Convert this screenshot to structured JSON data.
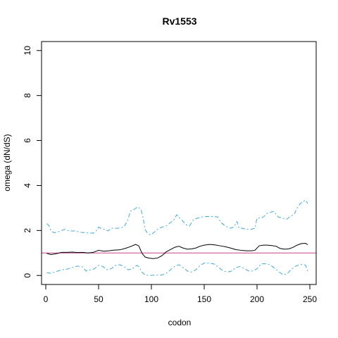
{
  "chart_data": {
    "type": "line",
    "title": "Rv1553",
    "xlabel": "codon",
    "ylabel": "omega (dN/dS)",
    "xlim": [
      -4,
      256
    ],
    "ylim": [
      -0.4,
      10.4
    ],
    "xticks": [
      0,
      50,
      100,
      150,
      200,
      250
    ],
    "yticks": [
      0,
      2,
      4,
      6,
      8,
      10
    ],
    "grid": false,
    "legend": "none",
    "reference_line": {
      "y": 1,
      "color": "#c4468a"
    },
    "series": [
      {
        "role": "estimate",
        "color": "#000000",
        "dash": "solid",
        "points": [
          [
            1,
            0.98
          ],
          [
            5,
            0.93
          ],
          [
            10,
            0.97
          ],
          [
            15,
            1.03
          ],
          [
            20,
            1.03
          ],
          [
            25,
            1.04
          ],
          [
            30,
            1.02
          ],
          [
            35,
            1.03
          ],
          [
            40,
            1.0
          ],
          [
            45,
            1.03
          ],
          [
            50,
            1.12
          ],
          [
            55,
            1.08
          ],
          [
            60,
            1.1
          ],
          [
            65,
            1.13
          ],
          [
            70,
            1.14
          ],
          [
            75,
            1.2
          ],
          [
            80,
            1.28
          ],
          [
            85,
            1.38
          ],
          [
            88,
            1.32
          ],
          [
            91,
            1.0
          ],
          [
            94,
            0.82
          ],
          [
            98,
            0.77
          ],
          [
            102,
            0.75
          ],
          [
            106,
            0.78
          ],
          [
            110,
            0.88
          ],
          [
            114,
            1.05
          ],
          [
            118,
            1.15
          ],
          [
            122,
            1.25
          ],
          [
            126,
            1.3
          ],
          [
            130,
            1.22
          ],
          [
            134,
            1.17
          ],
          [
            138,
            1.18
          ],
          [
            142,
            1.22
          ],
          [
            146,
            1.3
          ],
          [
            150,
            1.35
          ],
          [
            155,
            1.38
          ],
          [
            160,
            1.36
          ],
          [
            165,
            1.32
          ],
          [
            170,
            1.28
          ],
          [
            175,
            1.22
          ],
          [
            180,
            1.15
          ],
          [
            185,
            1.12
          ],
          [
            190,
            1.1
          ],
          [
            195,
            1.1
          ],
          [
            198,
            1.12
          ],
          [
            202,
            1.32
          ],
          [
            206,
            1.35
          ],
          [
            210,
            1.35
          ],
          [
            214,
            1.33
          ],
          [
            218,
            1.3
          ],
          [
            222,
            1.2
          ],
          [
            226,
            1.17
          ],
          [
            230,
            1.18
          ],
          [
            234,
            1.25
          ],
          [
            238,
            1.35
          ],
          [
            242,
            1.42
          ],
          [
            246,
            1.43
          ],
          [
            248,
            1.37
          ]
        ]
      },
      {
        "role": "upper",
        "color": "#3fa9dc",
        "dash": "dashed",
        "points": [
          [
            1,
            2.3
          ],
          [
            3,
            2.22
          ],
          [
            5,
            1.98
          ],
          [
            8,
            1.9
          ],
          [
            12,
            1.95
          ],
          [
            15,
            2.0
          ],
          [
            18,
            2.05
          ],
          [
            22,
            1.98
          ],
          [
            28,
            1.98
          ],
          [
            33,
            1.92
          ],
          [
            38,
            1.9
          ],
          [
            45,
            1.88
          ],
          [
            48,
            2.0
          ],
          [
            50,
            2.15
          ],
          [
            53,
            2.08
          ],
          [
            56,
            2.05
          ],
          [
            59,
            1.98
          ],
          [
            62,
            2.1
          ],
          [
            68,
            2.1
          ],
          [
            74,
            2.15
          ],
          [
            78,
            2.5
          ],
          [
            80,
            2.85
          ],
          [
            84,
            2.95
          ],
          [
            87,
            3.05
          ],
          [
            90,
            2.95
          ],
          [
            92,
            2.6
          ],
          [
            94,
            2.05
          ],
          [
            96,
            1.9
          ],
          [
            99,
            1.8
          ],
          [
            102,
            1.9
          ],
          [
            106,
            2.05
          ],
          [
            110,
            2.15
          ],
          [
            114,
            2.2
          ],
          [
            118,
            2.35
          ],
          [
            121,
            2.45
          ],
          [
            124,
            2.7
          ],
          [
            127,
            2.55
          ],
          [
            130,
            2.4
          ],
          [
            133,
            2.25
          ],
          [
            136,
            2.2
          ],
          [
            140,
            2.5
          ],
          [
            144,
            2.55
          ],
          [
            148,
            2.6
          ],
          [
            152,
            2.62
          ],
          [
            158,
            2.62
          ],
          [
            163,
            2.6
          ],
          [
            166,
            2.35
          ],
          [
            170,
            2.2
          ],
          [
            175,
            2.1
          ],
          [
            178,
            2.15
          ],
          [
            181,
            2.4
          ],
          [
            183,
            2.1
          ],
          [
            186,
            2.1
          ],
          [
            190,
            2.05
          ],
          [
            194,
            2.05
          ],
          [
            198,
            2.1
          ],
          [
            200,
            2.55
          ],
          [
            203,
            2.55
          ],
          [
            206,
            2.6
          ],
          [
            209,
            2.75
          ],
          [
            212,
            2.8
          ],
          [
            216,
            2.85
          ],
          [
            220,
            2.6
          ],
          [
            224,
            2.55
          ],
          [
            228,
            2.5
          ],
          [
            232,
            2.65
          ],
          [
            235,
            2.7
          ],
          [
            238,
            3.0
          ],
          [
            241,
            3.2
          ],
          [
            244,
            3.3
          ],
          [
            246,
            3.35
          ],
          [
            248,
            3.2
          ]
        ]
      },
      {
        "role": "lower",
        "color": "#3fa9dc",
        "dash": "dashed",
        "points": [
          [
            1,
            0.12
          ],
          [
            5,
            0.1
          ],
          [
            10,
            0.18
          ],
          [
            15,
            0.25
          ],
          [
            20,
            0.28
          ],
          [
            25,
            0.35
          ],
          [
            30,
            0.42
          ],
          [
            35,
            0.38
          ],
          [
            38,
            0.2
          ],
          [
            42,
            0.25
          ],
          [
            46,
            0.3
          ],
          [
            50,
            0.45
          ],
          [
            54,
            0.4
          ],
          [
            58,
            0.25
          ],
          [
            62,
            0.3
          ],
          [
            66,
            0.45
          ],
          [
            70,
            0.48
          ],
          [
            74,
            0.4
          ],
          [
            78,
            0.25
          ],
          [
            82,
            0.3
          ],
          [
            86,
            0.45
          ],
          [
            88,
            0.4
          ],
          [
            91,
            0.15
          ],
          [
            94,
            0.02
          ],
          [
            98,
            0.0
          ],
          [
            104,
            0.02
          ],
          [
            110,
            0.02
          ],
          [
            114,
            0.1
          ],
          [
            118,
            0.25
          ],
          [
            122,
            0.4
          ],
          [
            126,
            0.48
          ],
          [
            130,
            0.35
          ],
          [
            134,
            0.2
          ],
          [
            138,
            0.15
          ],
          [
            142,
            0.25
          ],
          [
            146,
            0.45
          ],
          [
            150,
            0.55
          ],
          [
            155,
            0.55
          ],
          [
            160,
            0.5
          ],
          [
            164,
            0.35
          ],
          [
            168,
            0.2
          ],
          [
            172,
            0.15
          ],
          [
            176,
            0.2
          ],
          [
            180,
            0.35
          ],
          [
            184,
            0.4
          ],
          [
            188,
            0.3
          ],
          [
            192,
            0.2
          ],
          [
            196,
            0.2
          ],
          [
            200,
            0.3
          ],
          [
            204,
            0.52
          ],
          [
            208,
            0.52
          ],
          [
            212,
            0.48
          ],
          [
            216,
            0.35
          ],
          [
            220,
            0.2
          ],
          [
            224,
            0.05
          ],
          [
            228,
            0.05
          ],
          [
            232,
            0.25
          ],
          [
            236,
            0.4
          ],
          [
            240,
            0.48
          ],
          [
            244,
            0.5
          ],
          [
            246,
            0.45
          ],
          [
            248,
            0.2
          ]
        ]
      }
    ]
  }
}
